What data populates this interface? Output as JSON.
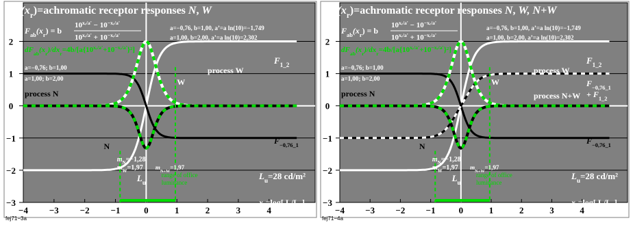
{
  "colors": {
    "frame_bg": "#ffffff",
    "plot_bg": "#808080",
    "white": "#ffffff",
    "black": "#000000",
    "green": "#00dc00",
    "dark_green": "#006600"
  },
  "chart_data": [
    {
      "type": "line",
      "caption": "fej71−3a",
      "title": {
        "fab": "F",
        "fab_sub": "ab",
        "fab_arg": "(x",
        "fab_arg_sub": "r",
        "fab_close": ")",
        "rest": "=achromatic receptor responses ",
        "n": "N",
        "comma": ", ",
        "w": "W",
        "extra": ""
      },
      "formula": {
        "lhs": "F",
        "lhs_sub": "ab",
        "lhs_arg": "(x",
        "lhs_arg_sub": "r",
        "lhs_close": ") = b",
        "numer": "10",
        "numer_exp": "xᵣ/a'",
        "numer_minus": " − 10",
        "numer_exp2": "−xᵣ/a'",
        "denom": "10",
        "denom_exp": "xᵣ/a'",
        "denom_plus": " + 10",
        "denom_exp2": "−xᵣ/a'"
      },
      "params_1": "a=−0,76, b=1,00, a’=a ln(10)=−1,749",
      "params_2": "a=1,00, b=2,00, a’=a ln(10)=2,302",
      "derivative": "dF",
      "derivative_sub": "ab",
      "derivative_rest": "(x",
      "derivative_rest_sub": "r",
      "derivative_tail": ")/dx",
      "derivative_tail_sub": "r",
      "derivative_eq": "=4b/[a{10",
      "derivative_exp": "xᵣ/a'",
      "derivative_plus": "+10",
      "derivative_exp2": "−xᵣ/a'",
      "derivative_end": "}²]",
      "param_box_1": "a=−0,76; b=1,00",
      "param_box_2": "a=1,00; b=2,00",
      "labels": {
        "process_w": "process W",
        "process_n": "process N",
        "process_nw": "",
        "f12_main": "F",
        "f12_sub": "1_2",
        "fn_main": "F",
        "fn_sub": "−0,76_1",
        "fnw_main": "",
        "fnw_sub": "",
        "fnw2_main": "",
        "fnw2_sub": "",
        "n_mark": "N",
        "w_mark": "W",
        "mn": "m",
        "mn_sub": "N",
        "mn_val": "=−1,28",
        "mw": "m",
        "mw_sub": "W",
        "mw_val": "=1,97",
        "mnw": "m",
        "mnw_sub": "N+W",
        "mnw_val": "=1,97",
        "lu": "L",
        "lu_sub": "u",
        "office_1": "range of office",
        "office_2": "luminance",
        "lu_main": "L",
        "lu_main_sub": "u",
        "lu_val": "=28 cd/m²",
        "xr": "x",
        "xr_sub": "r",
        "xr_rest": "=log[ L/L",
        "xr_rest_sub": "u",
        "xr_end": "]"
      },
      "x_ticks": [
        "−4",
        "−3",
        "−2",
        "−1",
        "0",
        "1",
        "2",
        "3",
        "4"
      ],
      "y_ticks": [
        "2",
        "1",
        "0",
        "−1",
        "−2",
        "−3"
      ],
      "xlim": [
        -4,
        5.5
      ],
      "ylim": [
        -3,
        3.2
      ],
      "series": [
        {
          "kind": "tanh",
          "a": 1.0,
          "b": 2.0,
          "offset": 0,
          "style": "white"
        },
        {
          "kind": "tanh",
          "a": -0.76,
          "b": 1.0,
          "offset": 0,
          "style": "black"
        },
        {
          "kind": "deriv",
          "a": 1.0,
          "b": 2.0,
          "style": "green_white"
        },
        {
          "kind": "deriv_neg",
          "a": -0.76,
          "b": 1.0,
          "style": "green_black"
        }
      ],
      "marks": {
        "mn_x": -0.04,
        "mn_y": -1.28,
        "mw_x": 0.0,
        "mw_y": 1.97,
        "w_x": 0.95,
        "office_x0": -0.85,
        "office_x1": 0.95
      }
    },
    {
      "type": "line",
      "caption": "fej71−4a",
      "title": {
        "fab": "F",
        "fab_sub": "ab",
        "fab_arg": "(x",
        "fab_arg_sub": "r",
        "fab_close": ")",
        "rest": "=achromatic receptor responses ",
        "n": "N",
        "comma": ", ",
        "w": "W",
        "extra": ", N+W"
      },
      "formula": {
        "lhs": "F",
        "lhs_sub": "ab",
        "lhs_arg": "(x",
        "lhs_arg_sub": "r",
        "lhs_close": ") = b",
        "numer": "10",
        "numer_exp": "xᵣ/a'",
        "numer_minus": " − 10",
        "numer_exp2": "−xᵣ/a'",
        "denom": "10",
        "denom_exp": "xᵣ/a'",
        "denom_plus": " + 10",
        "denom_exp2": "−xᵣ/a'"
      },
      "params_1": "a=−0,76, b=1,00, a’=a ln(10)=−1,749",
      "params_2": "a=1,00, b=2,00, a’=a ln(10)=2,302",
      "derivative": "dF",
      "derivative_sub": "ab",
      "derivative_rest": "(x",
      "derivative_rest_sub": "r",
      "derivative_tail": ")/dx",
      "derivative_tail_sub": "r",
      "derivative_eq": "=4b/[a{10",
      "derivative_exp": "xᵣ/a'",
      "derivative_plus": "+10",
      "derivative_exp2": "−xᵣ/a'",
      "derivative_end": "}²]",
      "param_box_1": "a=−0,76; b=1,00",
      "param_box_2": "a=1,00; b=2,00",
      "labels": {
        "process_w": "process W",
        "process_n": "process N",
        "process_nw": "process N+W",
        "f12_main": "F",
        "f12_sub": "1_2",
        "fn_main": "F",
        "fn_sub": "−0,76_1",
        "fnw_main": "F",
        "fnw_sub": "−0,76_1",
        "fnw2_main": "+ F",
        "fnw2_sub": "1_2",
        "n_mark": "N",
        "w_mark": "W",
        "mn": "m",
        "mn_sub": "N",
        "mn_val": "=−1,28",
        "mw": "m",
        "mw_sub": "W",
        "mw_val": "=1,97",
        "mnw": "m",
        "mnw_sub": "N+W",
        "mnw_val": "=1,97",
        "lu": "L",
        "lu_sub": "u",
        "office_1": "range of office",
        "office_2": "luminance",
        "lu_main": "L",
        "lu_main_sub": "u",
        "lu_val": "=28 cd/m²",
        "xr": "x",
        "xr_sub": "r",
        "xr_rest": "=log[ L/L",
        "xr_rest_sub": "u",
        "xr_end": "]"
      },
      "x_ticks": [
        "−4",
        "−3",
        "−2",
        "−1",
        "0",
        "1",
        "2",
        "3",
        "4"
      ],
      "y_ticks": [
        "2",
        "1",
        "0",
        "−1",
        "−2",
        "−3"
      ],
      "xlim": [
        -4,
        5.5
      ],
      "ylim": [
        -3,
        3.2
      ],
      "series": [
        {
          "kind": "tanh",
          "a": 1.0,
          "b": 2.0,
          "offset": 0,
          "style": "white"
        },
        {
          "kind": "tanh",
          "a": -0.76,
          "b": 1.0,
          "offset": 0,
          "style": "black"
        },
        {
          "kind": "sum",
          "style": "black_white"
        },
        {
          "kind": "deriv",
          "a": 1.0,
          "b": 2.0,
          "style": "green_white"
        },
        {
          "kind": "deriv_neg",
          "a": -0.76,
          "b": 1.0,
          "style": "green_black"
        }
      ],
      "marks": {
        "mn_x": -0.04,
        "mn_y": -1.28,
        "mw_x": 0.0,
        "mw_y": 1.97,
        "w_x": 0.95,
        "office_x0": -0.85,
        "office_x1": 0.95
      }
    }
  ]
}
